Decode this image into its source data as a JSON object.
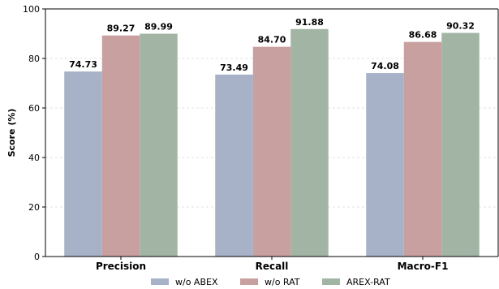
{
  "chart_data": {
    "type": "bar",
    "categories": [
      "Precision",
      "Recall",
      "Macro-F1"
    ],
    "series": [
      {
        "name": "w/o ABEX",
        "values": [
          74.73,
          73.49,
          74.08
        ],
        "color": "#a7b1c8"
      },
      {
        "name": "w/o RAT",
        "values": [
          89.27,
          84.7,
          86.68
        ],
        "color": "#c9a0a0"
      },
      {
        "name": "AREX-RAT",
        "values": [
          89.99,
          91.88,
          90.32
        ],
        "color": "#a2b5a5"
      }
    ],
    "value_labels": [
      [
        "74.73",
        "73.49",
        "74.08"
      ],
      [
        "89.27",
        "84.70",
        "86.68"
      ],
      [
        "89.99",
        "91.88",
        "90.32"
      ]
    ],
    "ylabel": "Score (%)",
    "ylim": [
      0,
      100
    ],
    "yticks": [
      0,
      20,
      40,
      60,
      80,
      100
    ],
    "grid": true,
    "legend_position": "bottom-center"
  }
}
